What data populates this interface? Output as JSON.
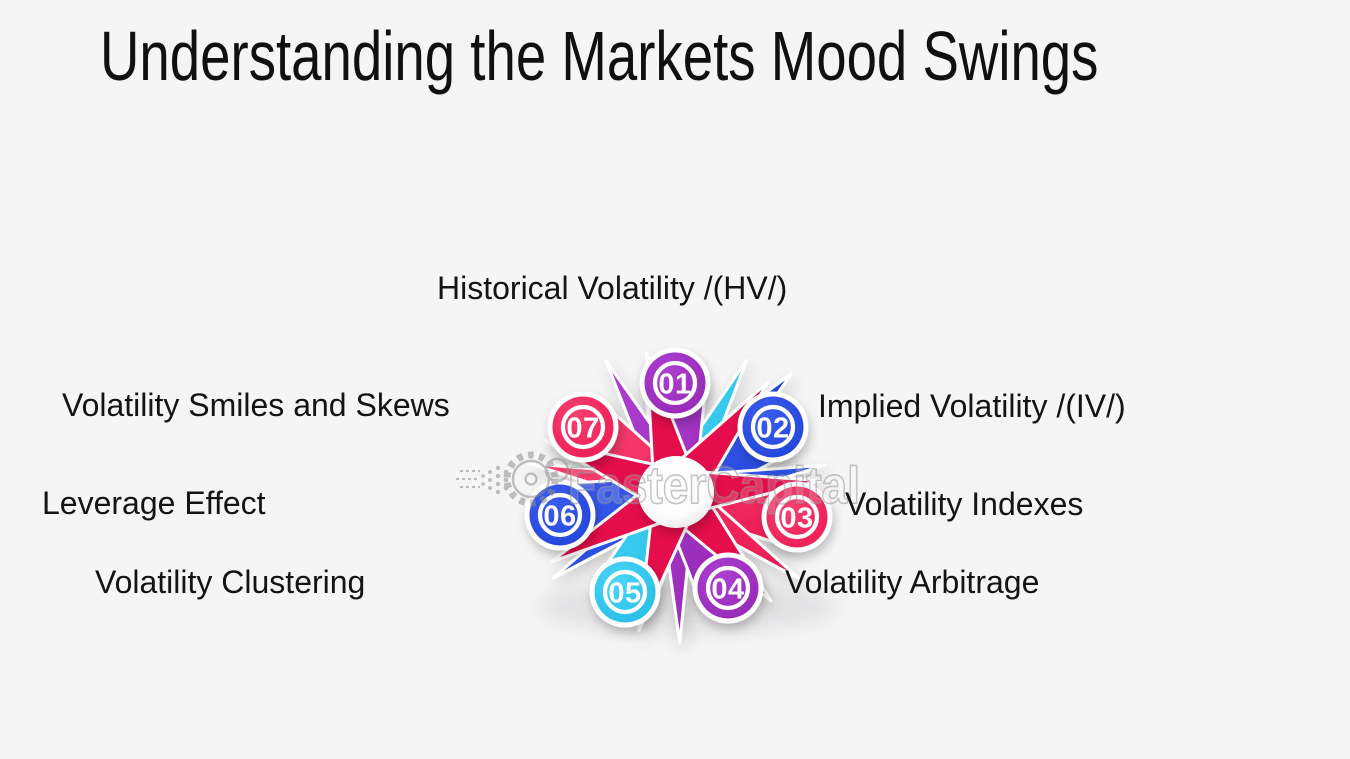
{
  "page": {
    "background": "#f5f5f6",
    "text_color": "#141414"
  },
  "title": "Understanding the Markets Mood Swings",
  "watermark": {
    "text": "FasterCapital",
    "icon": "gear-logo"
  },
  "diagram": {
    "type": "circular-numbered-pinwheel",
    "center_shape": "white-sphere",
    "items": [
      {
        "number": "01",
        "label": "Historical Volatility /(HV/)",
        "color": "#9527b4",
        "color_light": "#ad3fd2",
        "color_name": "purple",
        "label_side": "top"
      },
      {
        "number": "02",
        "label": "Implied Volatility /(IV/)",
        "color": "#2244d8",
        "color_light": "#3a5cee",
        "color_name": "blue",
        "label_side": "right"
      },
      {
        "number": "03",
        "label": "Volatility Indexes",
        "color": "#eb1a52",
        "color_light": "#f84070",
        "color_name": "crimson",
        "label_side": "right"
      },
      {
        "number": "04",
        "label": "Volatility Arbitrage",
        "color": "#9527b4",
        "color_light": "#ad3fd2",
        "color_name": "purple",
        "label_side": "right"
      },
      {
        "number": "05",
        "label": "Volatility Clustering",
        "color": "#23bbe5",
        "color_light": "#4bd6f6",
        "color_name": "cyan",
        "label_side": "left"
      },
      {
        "number": "06",
        "label": "Leverage Effect",
        "color": "#2244d8",
        "color_light": "#3a5cee",
        "color_name": "blue",
        "label_side": "left"
      },
      {
        "number": "07",
        "label": "Volatility Smiles and Skews",
        "color": "#eb1a52",
        "color_light": "#f84070",
        "color_name": "crimson",
        "label_side": "left"
      }
    ],
    "star_color": "#e5114b"
  }
}
